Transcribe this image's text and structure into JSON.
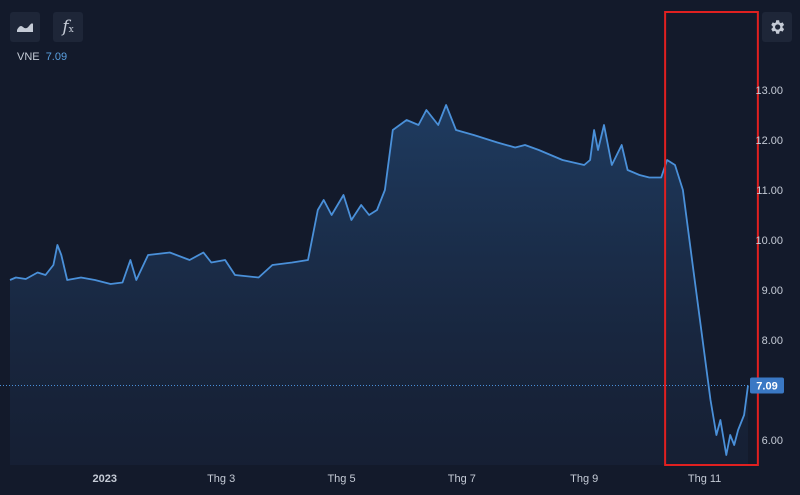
{
  "toolbar": {
    "chart_type_icon": "area-chart-icon",
    "indicator_icon": "function-fx-icon",
    "settings_icon": "gear-icon"
  },
  "legend": {
    "symbol": "VNE",
    "value": "7.09"
  },
  "colors": {
    "background": "#131a2b",
    "line": "#4a90d9",
    "area_top": "#1e3a5c",
    "highlight_box": "#e02020",
    "last_price_bg": "#3a78c4",
    "axis_text": "#c5cbd6"
  },
  "chart_data": {
    "type": "area",
    "series": [
      {
        "symbol": "VNE",
        "values": [
          {
            "x": "2022-11-14",
            "y": 9.2
          },
          {
            "x": "2022-11-17",
            "y": 9.25
          },
          {
            "x": "2022-11-22",
            "y": 9.22
          },
          {
            "x": "2022-11-28",
            "y": 9.35
          },
          {
            "x": "2022-12-02",
            "y": 9.3
          },
          {
            "x": "2022-12-06",
            "y": 9.5
          },
          {
            "x": "2022-12-08",
            "y": 9.9
          },
          {
            "x": "2022-12-10",
            "y": 9.7
          },
          {
            "x": "2022-12-13",
            "y": 9.2
          },
          {
            "x": "2022-12-20",
            "y": 9.25
          },
          {
            "x": "2022-12-27",
            "y": 9.2
          },
          {
            "x": "2023-01-04",
            "y": 9.12
          },
          {
            "x": "2023-01-10",
            "y": 9.15
          },
          {
            "x": "2023-01-14",
            "y": 9.6
          },
          {
            "x": "2023-01-17",
            "y": 9.2
          },
          {
            "x": "2023-01-23",
            "y": 9.7
          },
          {
            "x": "2023-02-03",
            "y": 9.75
          },
          {
            "x": "2023-02-13",
            "y": 9.6
          },
          {
            "x": "2023-02-20",
            "y": 9.75
          },
          {
            "x": "2023-02-24",
            "y": 9.55
          },
          {
            "x": "2023-03-03",
            "y": 9.6
          },
          {
            "x": "2023-03-08",
            "y": 9.3
          },
          {
            "x": "2023-03-20",
            "y": 9.25
          },
          {
            "x": "2023-03-27",
            "y": 9.5
          },
          {
            "x": "2023-04-06",
            "y": 9.55
          },
          {
            "x": "2023-04-14",
            "y": 9.6
          },
          {
            "x": "2023-04-19",
            "y": 10.6
          },
          {
            "x": "2023-04-22",
            "y": 10.8
          },
          {
            "x": "2023-04-26",
            "y": 10.5
          },
          {
            "x": "2023-05-02",
            "y": 10.9
          },
          {
            "x": "2023-05-06",
            "y": 10.4
          },
          {
            "x": "2023-05-11",
            "y": 10.7
          },
          {
            "x": "2023-05-15",
            "y": 10.5
          },
          {
            "x": "2023-05-19",
            "y": 10.6
          },
          {
            "x": "2023-05-23",
            "y": 11.0
          },
          {
            "x": "2023-05-27",
            "y": 12.2
          },
          {
            "x": "2023-06-03",
            "y": 12.4
          },
          {
            "x": "2023-06-09",
            "y": 12.3
          },
          {
            "x": "2023-06-13",
            "y": 12.6
          },
          {
            "x": "2023-06-19",
            "y": 12.3
          },
          {
            "x": "2023-06-23",
            "y": 12.7
          },
          {
            "x": "2023-06-28",
            "y": 12.2
          },
          {
            "x": "2023-07-07",
            "y": 12.1
          },
          {
            "x": "2023-07-19",
            "y": 11.95
          },
          {
            "x": "2023-07-28",
            "y": 11.85
          },
          {
            "x": "2023-08-02",
            "y": 11.9
          },
          {
            "x": "2023-08-09",
            "y": 11.8
          },
          {
            "x": "2023-08-21",
            "y": 11.6
          },
          {
            "x": "2023-09-01",
            "y": 11.5
          },
          {
            "x": "2023-09-04",
            "y": 11.6
          },
          {
            "x": "2023-09-06",
            "y": 12.2
          },
          {
            "x": "2023-09-08",
            "y": 11.8
          },
          {
            "x": "2023-09-11",
            "y": 12.3
          },
          {
            "x": "2023-09-15",
            "y": 11.5
          },
          {
            "x": "2023-09-20",
            "y": 11.9
          },
          {
            "x": "2023-09-23",
            "y": 11.4
          },
          {
            "x": "2023-09-29",
            "y": 11.3
          },
          {
            "x": "2023-10-04",
            "y": 11.25
          },
          {
            "x": "2023-10-10",
            "y": 11.25
          },
          {
            "x": "2023-10-13",
            "y": 11.6
          },
          {
            "x": "2023-10-17",
            "y": 11.5
          },
          {
            "x": "2023-10-21",
            "y": 11.0
          },
          {
            "x": "2023-10-26",
            "y": 9.5
          },
          {
            "x": "2023-10-31",
            "y": 8.0
          },
          {
            "x": "2023-11-04",
            "y": 6.8
          },
          {
            "x": "2023-11-07",
            "y": 6.1
          },
          {
            "x": "2023-11-09",
            "y": 6.4
          },
          {
            "x": "2023-11-12",
            "y": 5.7
          },
          {
            "x": "2023-11-14",
            "y": 6.1
          },
          {
            "x": "2023-11-16",
            "y": 5.9
          },
          {
            "x": "2023-11-18",
            "y": 6.2
          },
          {
            "x": "2023-11-21",
            "y": 6.5
          },
          {
            "x": "2023-11-23",
            "y": 7.09
          }
        ]
      }
    ],
    "x_ticks": [
      {
        "date": "2023-01-01",
        "label": "2023"
      },
      {
        "date": "2023-03-01",
        "label": "Thg 3"
      },
      {
        "date": "2023-05-01",
        "label": "Thg 5"
      },
      {
        "date": "2023-07-01",
        "label": "Thg 7"
      },
      {
        "date": "2023-09-01",
        "label": "Thg 9"
      },
      {
        "date": "2023-11-01",
        "label": "Thg 11"
      }
    ],
    "x_range": [
      "2022-11-14",
      "2023-11-23"
    ],
    "y_ticks": [
      6,
      7,
      8,
      9,
      10,
      11,
      12,
      13
    ],
    "y_tick_labels": [
      "6.00",
      "",
      "8.00",
      "9.00",
      "10.00",
      "11.00",
      "12.00",
      "13.00"
    ],
    "ylim": [
      5.5,
      13.9
    ],
    "last_price": 7.09,
    "last_price_label": "7.09",
    "highlight_range": {
      "from": "2023-10-12",
      "to": "2023-11-28"
    },
    "grid": false
  }
}
